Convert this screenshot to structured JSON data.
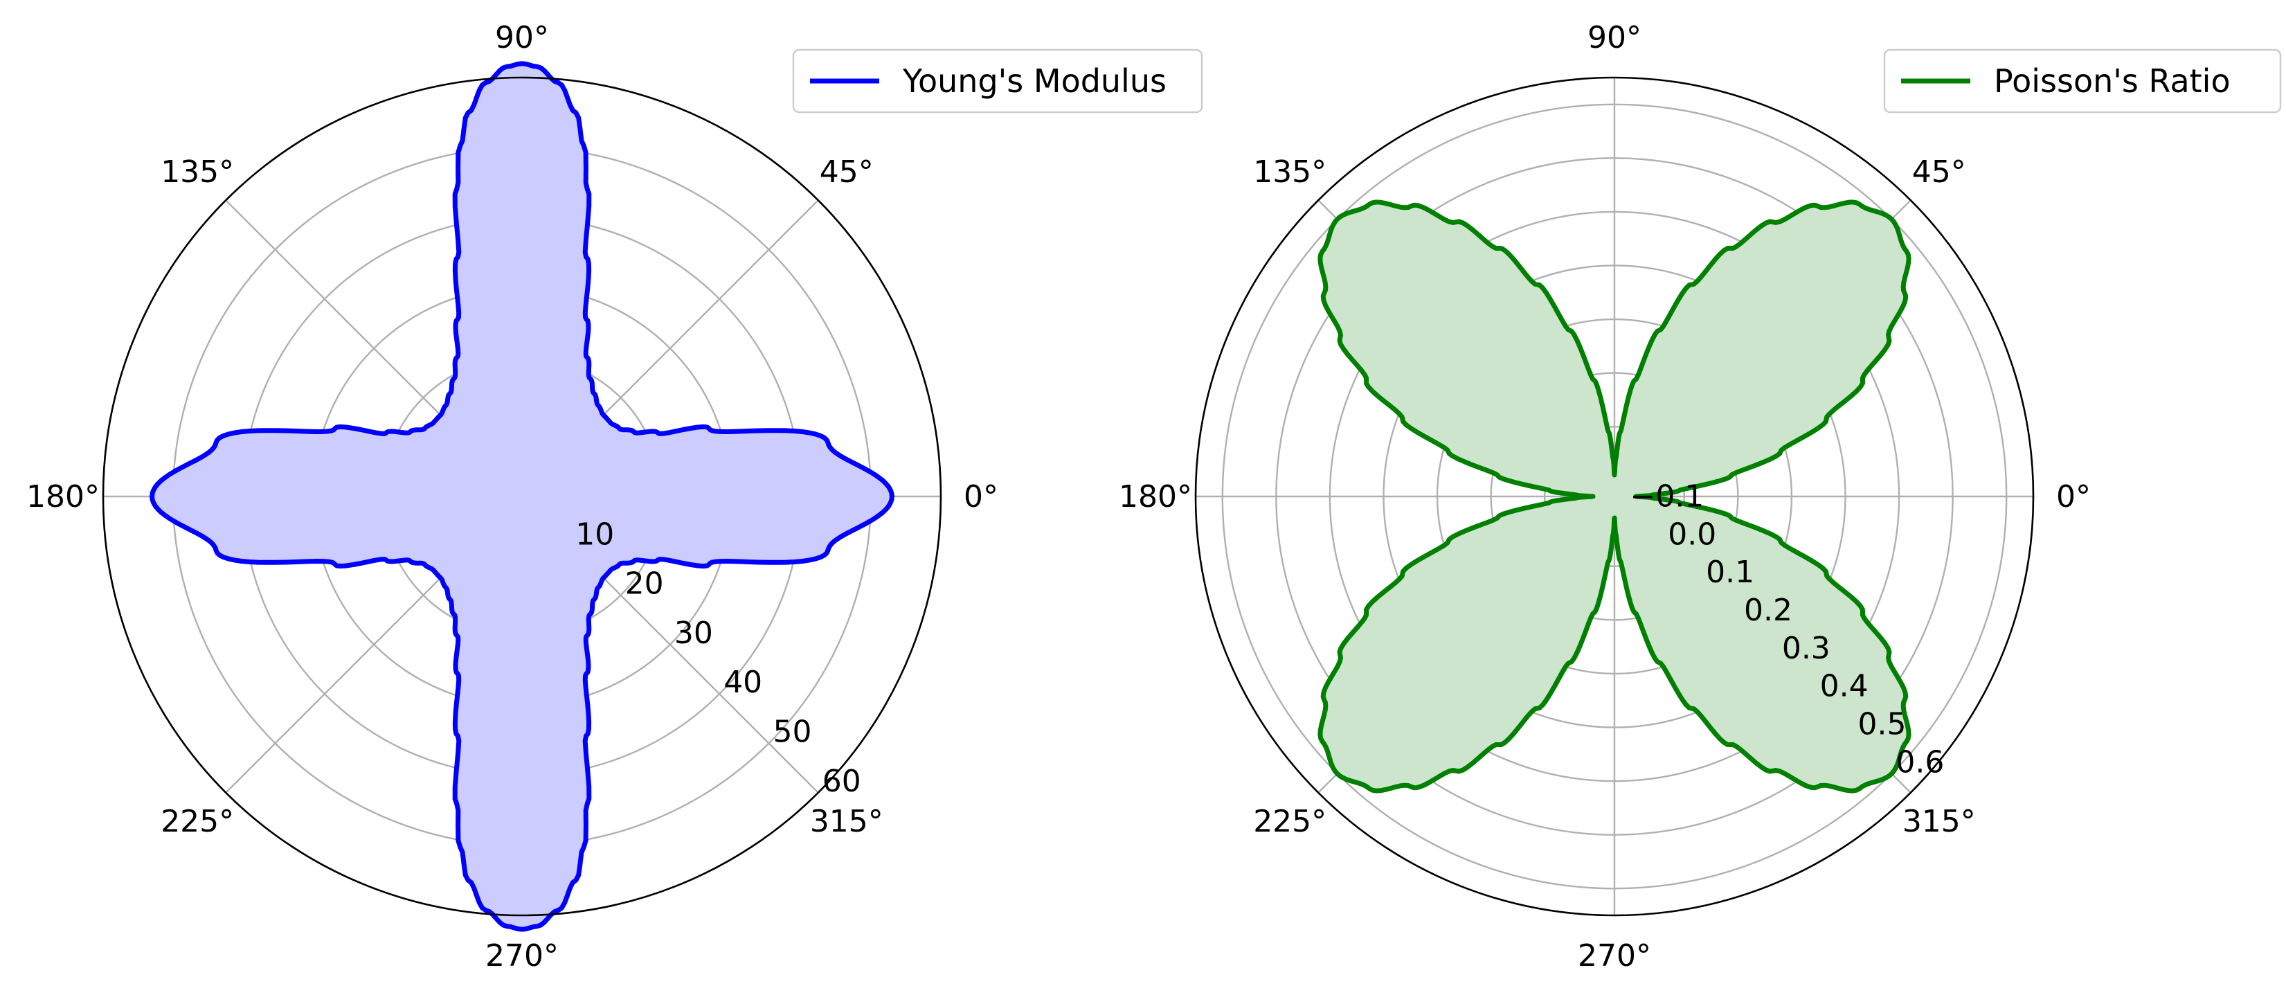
{
  "chart_data": [
    {
      "type": "polar-area",
      "theta_ticks": [
        "0°",
        "45°",
        "90°",
        "135°",
        "180°",
        "225°",
        "270°",
        "315°"
      ],
      "r_ticks": [
        "10",
        "20",
        "30",
        "40",
        "50",
        "60"
      ],
      "r_tick_values": [
        10,
        20,
        30,
        40,
        50,
        60
      ],
      "r_range": [
        0,
        60
      ],
      "r_label_angle_deg": -45,
      "grid": true,
      "legend": "top-right",
      "series": [
        {
          "name": "Young's Modulus",
          "color": "#0000ff",
          "fill": "#ccccff",
          "theta_deg": [
            0,
            10,
            20,
            25,
            30,
            35,
            40,
            45,
            50,
            55,
            60,
            65,
            70,
            75,
            78,
            80,
            82,
            85,
            88,
            90
          ],
          "r": [
            53.0,
            44.5,
            28.5,
            21.5,
            18.5,
            17.0,
            16.5,
            16.5,
            17.0,
            18.0,
            19.5,
            22.0,
            27.0,
            35.5,
            45.0,
            51.0,
            55.5,
            59.5,
            61.6,
            62.0
          ]
        }
      ]
    },
    {
      "type": "polar-area",
      "theta_ticks": [
        "0°",
        "45°",
        "90°",
        "135°",
        "180°",
        "225°",
        "270°",
        "315°"
      ],
      "r_ticks": [
        "−0.1",
        "0.0",
        "0.1",
        "0.2",
        "0.3",
        "0.4",
        "0.5",
        "0.6"
      ],
      "r_tick_values": [
        -0.1,
        0.0,
        0.1,
        0.2,
        0.3,
        0.4,
        0.5,
        0.6
      ],
      "r_range": [
        -0.13,
        0.65
      ],
      "r_label_angle_deg": -45,
      "grid": true,
      "legend": "top-right",
      "series": [
        {
          "name": "Poisson's Ratio",
          "color": "#008000",
          "fill": "#cce5cc",
          "theta_deg": [
            0,
            2,
            5,
            10,
            15,
            20,
            25,
            30,
            35,
            40,
            45
          ],
          "r": [
            -0.09,
            -0.06,
            -0.01,
            0.09,
            0.19,
            0.29,
            0.38,
            0.46,
            0.53,
            0.58,
            0.6
          ]
        }
      ]
    }
  ]
}
